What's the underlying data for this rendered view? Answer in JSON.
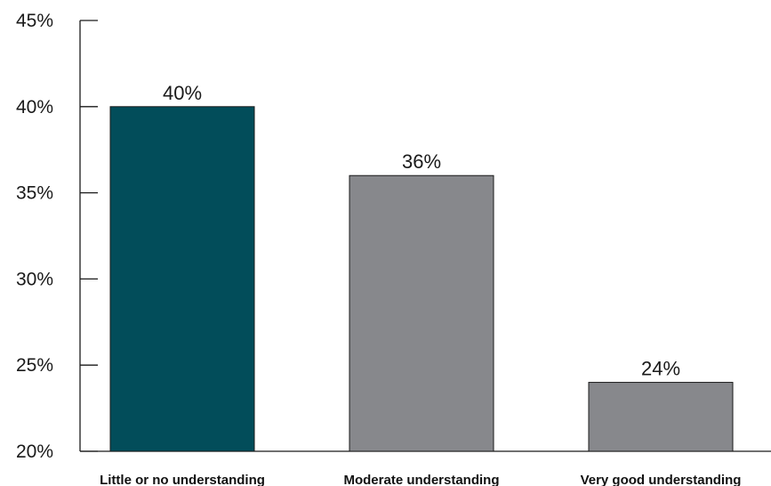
{
  "chart_data": {
    "type": "bar",
    "title": "",
    "xlabel": "",
    "ylabel": "",
    "categories": [
      "Little or no understanding",
      "Moderate understanding",
      "Very good understanding"
    ],
    "values": [
      40,
      36,
      24
    ],
    "data_labels": [
      "40%",
      "36%",
      "24%"
    ],
    "ylim": [
      20,
      45
    ],
    "yticks": [
      20,
      25,
      30,
      35,
      40,
      45
    ],
    "ytick_labels": [
      "20%",
      "25%",
      "30%",
      "35%",
      "40%",
      "45%"
    ],
    "bar_colors": [
      "#024d5a",
      "#87888c",
      "#87888c"
    ],
    "grid": false,
    "legend": "none"
  }
}
